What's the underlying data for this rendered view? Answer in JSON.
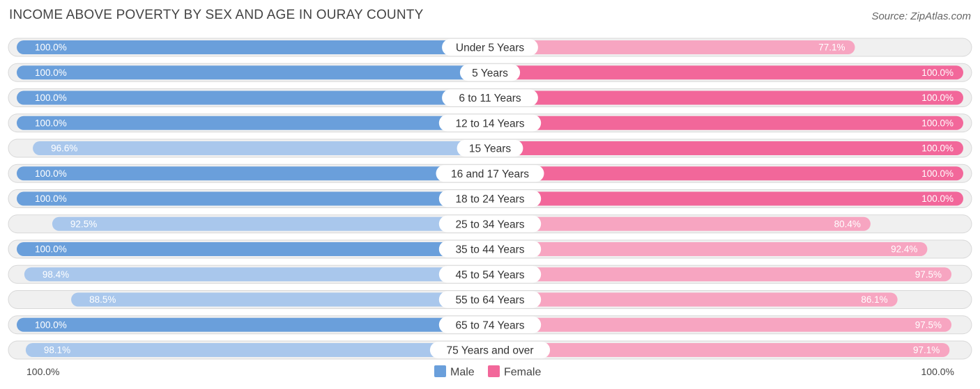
{
  "header": {
    "title": "INCOME ABOVE POVERTY BY SEX AND AGE IN OURAY COUNTY",
    "source": "Source: ZipAtlas.com"
  },
  "chart_data": {
    "type": "bar",
    "orientation": "horizontal-diverging",
    "title": "INCOME ABOVE POVERTY BY SEX AND AGE IN OURAY COUNTY",
    "categories": [
      "Under 5 Years",
      "5 Years",
      "6 to 11 Years",
      "12 to 14 Years",
      "15 Years",
      "16 and 17 Years",
      "18 to 24 Years",
      "25 to 34 Years",
      "35 to 44 Years",
      "45 to 54 Years",
      "55 to 64 Years",
      "65 to 74 Years",
      "75 Years and over"
    ],
    "series": [
      {
        "name": "Male",
        "values": [
          100.0,
          100.0,
          100.0,
          100.0,
          96.6,
          100.0,
          100.0,
          92.5,
          100.0,
          98.4,
          88.5,
          100.0,
          98.1
        ],
        "labels": [
          "100.0%",
          "100.0%",
          "100.0%",
          "100.0%",
          "96.6%",
          "100.0%",
          "100.0%",
          "92.5%",
          "100.0%",
          "98.4%",
          "88.5%",
          "100.0%",
          "98.1%"
        ]
      },
      {
        "name": "Female",
        "values": [
          77.1,
          100.0,
          100.0,
          100.0,
          100.0,
          100.0,
          100.0,
          80.4,
          92.4,
          97.5,
          86.1,
          97.5,
          97.1
        ],
        "labels": [
          "77.1%",
          "100.0%",
          "100.0%",
          "100.0%",
          "100.0%",
          "100.0%",
          "100.0%",
          "80.4%",
          "92.4%",
          "97.5%",
          "86.1%",
          "97.5%",
          "97.1%"
        ]
      }
    ],
    "xlim": [
      0,
      100
    ],
    "axis_left_label": "100.0%",
    "axis_right_label": "100.0%",
    "legend": [
      "Male",
      "Female"
    ],
    "legend_position": "bottom-center"
  },
  "colors": {
    "male_strong": "#6a9fdb",
    "male_light": "#a9c7ec",
    "female_strong": "#f2679a",
    "female_light": "#f7a5c1",
    "track_bg": "#f0f0f0",
    "track_border": "#d8d8d8"
  }
}
